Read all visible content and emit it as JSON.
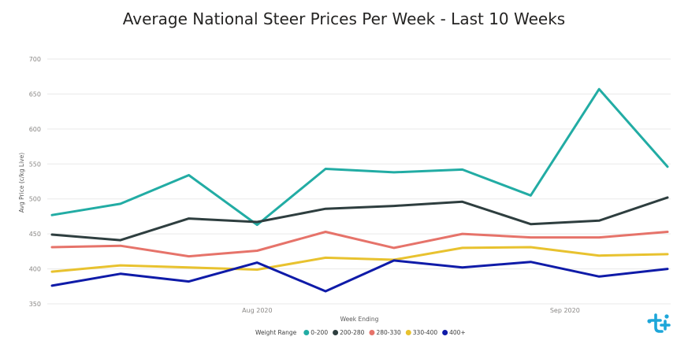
{
  "chart_data": {
    "type": "line",
    "title": "Average National Steer Prices Per Week - Last 10 Weeks",
    "xlabel": "Week Ending",
    "ylabel": "Avg Price (c/kg Live)",
    "ylim": [
      350,
      700
    ],
    "yticks": [
      "700",
      "650",
      "600",
      "550",
      "500",
      "450",
      "400",
      "350"
    ],
    "ytick_values": [
      700,
      650,
      600,
      550,
      500,
      450,
      400,
      350
    ],
    "xticks": [
      {
        "label": "Aug 2020",
        "week": 3
      },
      {
        "label": "Sep 2020",
        "week": 7.5
      }
    ],
    "grid": true,
    "legend_position": "bottom",
    "legend_title": "Weight Range",
    "x": [
      0,
      1,
      2,
      3,
      4,
      5,
      6,
      7,
      8,
      9
    ],
    "series": [
      {
        "name": "0-200",
        "color": "#22ACA4",
        "values": [
          477,
          493,
          534,
          463,
          543,
          538,
          542,
          505,
          657,
          546
        ]
      },
      {
        "name": "200-280",
        "color": "#2E3E3F",
        "values": [
          449,
          441,
          472,
          467,
          486,
          490,
          496,
          464,
          469,
          502
        ]
      },
      {
        "name": "280-330",
        "color": "#E6736A",
        "values": [
          431,
          433,
          418,
          426,
          453,
          430,
          450,
          445,
          445,
          453
        ]
      },
      {
        "name": "330-400",
        "color": "#E8C22F",
        "values": [
          396,
          405,
          402,
          399,
          416,
          413,
          430,
          431,
          419,
          421
        ]
      },
      {
        "name": "400+",
        "color": "#0F1BA8",
        "values": [
          376,
          393,
          382,
          409,
          368,
          412,
          402,
          410,
          389,
          400
        ]
      }
    ]
  },
  "logo": {
    "text": "t+",
    "color": "#1DA6D9"
  }
}
